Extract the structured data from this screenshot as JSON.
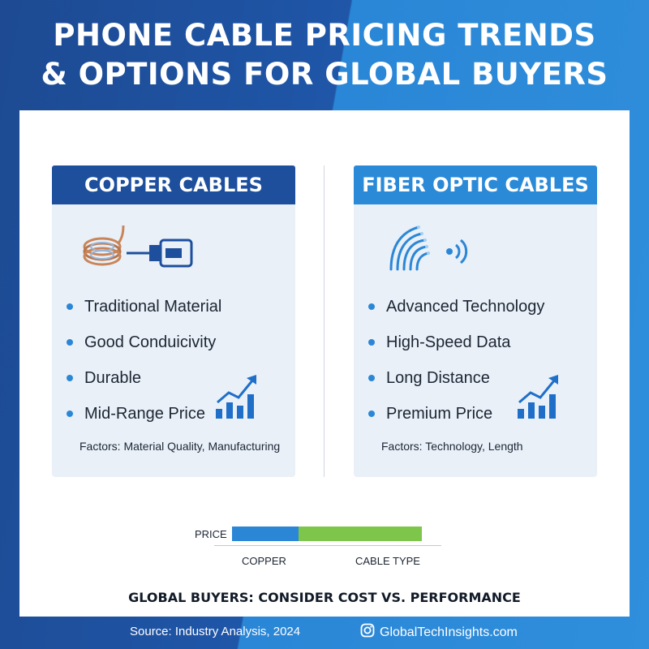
{
  "title": {
    "line1": "PHONE CABLE PRICING TRENDS",
    "line2": "& OPTIONS FOR GLOBAL BUYERS"
  },
  "copper": {
    "header": "COPPER CABLES",
    "icon": "copper-coil-plug-icon",
    "features": [
      "Traditional Material",
      "Good Conduicivity",
      "Durable",
      "Mid-Range Price"
    ],
    "trend_icon": "rising-bar-chart-icon",
    "factors": "Factors: Material Quality, Manufacturing"
  },
  "fiber": {
    "header": "FIBER OPTIC CABLES",
    "icon": "fiber-strands-signal-icon",
    "features": [
      "Advanced Technology",
      "High-Speed Data",
      "Long Distance",
      "Premium Price"
    ],
    "trend_icon": "rising-bar-chart-icon",
    "factors": "Factors: Technology, Length"
  },
  "price_chart": {
    "price_label": "PRICE",
    "axis_category": "COPPER",
    "axis_title": "CABLE TYPE",
    "colors": {
      "copper": "#2b87d6",
      "fiber": "#7dc64b"
    }
  },
  "tagline": "GLOBAL BUYERS: CONSIDER COST VS. PERFORMANCE",
  "footer": {
    "source": "Source: Industry Analysis, 2024",
    "social_icon": "instagram-icon",
    "social_handle": "GlobalTechInsights.com"
  },
  "colors": {
    "dark_blue": "#1d4f9d",
    "light_blue": "#2b8ad8",
    "card_bg": "#e9f0f8"
  }
}
